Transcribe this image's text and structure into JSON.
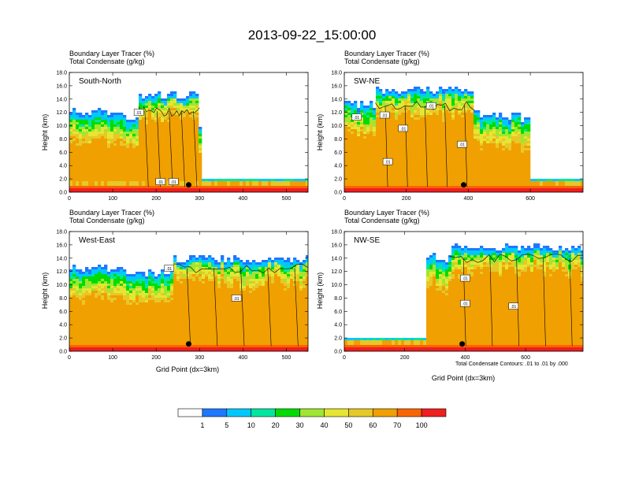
{
  "title": "2013-09-22_15:00:00",
  "subtitle_line1": "Boundary Layer Tracer   (%)",
  "subtitle_line2": "Total Condensate   (g/kg)",
  "ylabel": "Height (km)",
  "xlabel": "Grid Point (dx=3km)",
  "contour_note": "Total Condensate Contours: .01 to .01 by .000",
  "contour_label": ".01",
  "colors": {
    "bins": [
      "#ffffff",
      "#1e78ff",
      "#00c8ff",
      "#00e6a0",
      "#00dc00",
      "#a0e632",
      "#e6e632",
      "#e6c828",
      "#f0a000",
      "#fa6400",
      "#f01e1e"
    ],
    "dot": "#000000",
    "contour": "#000000"
  },
  "colorbar_labels": [
    "1",
    "5",
    "10",
    "20",
    "30",
    "40",
    "50",
    "60",
    "70",
    "100"
  ],
  "chart_data": [
    {
      "type": "heatmap",
      "name": "South-North",
      "label": "South-North",
      "xlim": [
        0,
        550
      ],
      "ylim": [
        0,
        18
      ],
      "xticks": [
        0,
        100,
        200,
        300,
        400,
        500
      ],
      "yticks": [
        "0.0",
        "2.0",
        "4.0",
        "6.0",
        "8.0",
        "10.0",
        "12.0",
        "14.0",
        "16.0",
        "18.0"
      ],
      "marker": {
        "x": 275,
        "y": 1.1
      },
      "cloud": {
        "x0": 0,
        "x1": 305,
        "top": 15.2,
        "base": 2.5,
        "tower_x": [
          160,
          300
        ],
        "anvil_top": 13.2
      },
      "contour_labels": [
        {
          "x": 160,
          "y": 12.0
        },
        {
          "x": 210,
          "y": 1.6
        },
        {
          "x": 240,
          "y": 1.6
        }
      ]
    },
    {
      "type": "heatmap",
      "name": "SW-NE",
      "label": "SW-NE",
      "xlim": [
        0,
        770
      ],
      "ylim": [
        0,
        18
      ],
      "xticks": [
        0,
        200,
        400,
        600
      ],
      "yticks": [
        "0.0",
        "2.0",
        "4.0",
        "6.0",
        "8.0",
        "10.0",
        "12.0",
        "14.0",
        "16.0",
        "18.0"
      ],
      "marker": {
        "x": 385,
        "y": 1.1
      },
      "cloud": {
        "x0": 0,
        "x1": 600,
        "top": 16.0,
        "base": 1.5,
        "tower_x": [
          100,
          420
        ],
        "anvil_top": 14.0
      },
      "contour_labels": [
        {
          "x": 40,
          "y": 11.3
        },
        {
          "x": 130,
          "y": 11.6
        },
        {
          "x": 280,
          "y": 13.0
        },
        {
          "x": 190,
          "y": 9.6
        },
        {
          "x": 140,
          "y": 4.6
        },
        {
          "x": 380,
          "y": 7.2
        }
      ]
    },
    {
      "type": "heatmap",
      "name": "West-East",
      "label": "West-East",
      "xlim": [
        0,
        550
      ],
      "ylim": [
        0,
        18
      ],
      "xticks": [
        0,
        100,
        200,
        300,
        400,
        500
      ],
      "yticks": [
        "0.0",
        "2.0",
        "4.0",
        "6.0",
        "8.0",
        "10.0",
        "12.0",
        "14.0",
        "16.0",
        "18.0"
      ],
      "marker": {
        "x": 275,
        "y": 1.1
      },
      "cloud": {
        "x0": 0,
        "x1": 550,
        "top": 14.5,
        "base": 2.0,
        "tower_x": [
          240,
          550
        ],
        "anvil_top": 13.5
      },
      "contour_labels": [
        {
          "x": 230,
          "y": 12.5
        },
        {
          "x": 385,
          "y": 8.0
        }
      ]
    },
    {
      "type": "heatmap",
      "name": "NW-SE",
      "label": "NW-SE",
      "xlim": [
        0,
        790
      ],
      "ylim": [
        0,
        18
      ],
      "xticks": [
        0,
        200,
        400,
        600
      ],
      "yticks": [
        "0.0",
        "2.0",
        "4.0",
        "6.0",
        "8.0",
        "10.0",
        "12.0",
        "14.0",
        "16.0",
        "18.0"
      ],
      "marker": {
        "x": 390,
        "y": 1.1
      },
      "cloud": {
        "x0": 270,
        "x1": 790,
        "top": 16.2,
        "base": 2.0,
        "tower_x": [
          350,
          790
        ],
        "anvil_top": 15.0
      },
      "contour_labels": [
        {
          "x": 400,
          "y": 11.0
        },
        {
          "x": 400,
          "y": 7.2
        },
        {
          "x": 560,
          "y": 6.8
        }
      ]
    }
  ]
}
